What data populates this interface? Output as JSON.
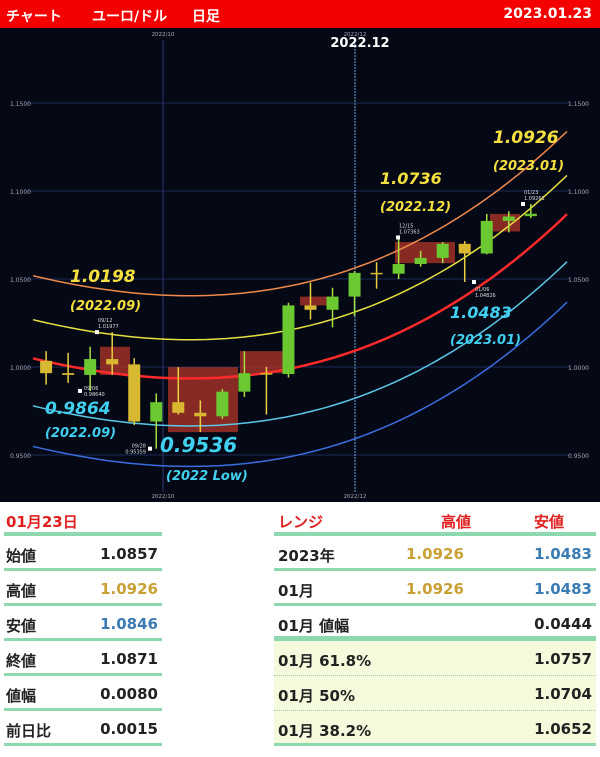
{
  "header": {
    "chart_label": "チャート",
    "pair": "ユーロ/ドル",
    "timeframe": "日足",
    "date": "2023.01.23"
  },
  "colors": {
    "header_bg": "#f40000",
    "chart_bg": "#050815",
    "high": "#c9a034",
    "low": "#3b7bb3",
    "separator": "#8ed8b0"
  },
  "chart_data": {
    "type": "candlestick",
    "x_ticks": [
      "2022/10",
      "2022/12"
    ],
    "highlight_tick": "2022.12",
    "y_ticks": [
      "1.1500",
      "1.1000",
      "1.0500",
      "1.0000",
      "0.9500"
    ],
    "ylim": [
      0.93,
      1.19
    ],
    "grid": true,
    "weekly_ohlc": [
      {
        "week": "2022-08-22",
        "o": 1.0035,
        "h": 1.009,
        "l": 0.99,
        "c": 0.9965
      },
      {
        "week": "2022-08-29",
        "o": 0.9965,
        "h": 1.008,
        "l": 0.991,
        "c": 0.9955
      },
      {
        "week": "2022-09-05",
        "o": 0.9955,
        "h": 1.0115,
        "l": 0.9864,
        "c": 1.0045
      },
      {
        "week": "2022-09-12",
        "o": 1.0045,
        "h": 1.0198,
        "l": 0.9955,
        "c": 1.0015
      },
      {
        "week": "2022-09-19",
        "o": 1.0015,
        "h": 1.005,
        "l": 0.967,
        "c": 0.969
      },
      {
        "week": "2022-09-26",
        "o": 0.969,
        "h": 0.985,
        "l": 0.9536,
        "c": 0.98
      },
      {
        "week": "2022-10-03",
        "o": 0.98,
        "h": 0.9999,
        "l": 0.973,
        "c": 0.974
      },
      {
        "week": "2022-10-10",
        "o": 0.974,
        "h": 0.981,
        "l": 0.963,
        "c": 0.972
      },
      {
        "week": "2022-10-17",
        "o": 0.972,
        "h": 0.9875,
        "l": 0.9705,
        "c": 0.986
      },
      {
        "week": "2022-10-24",
        "o": 0.986,
        "h": 1.009,
        "l": 0.983,
        "c": 0.9965
      },
      {
        "week": "2022-10-31",
        "o": 0.9965,
        "h": 1.0,
        "l": 0.973,
        "c": 0.996
      },
      {
        "week": "2022-11-07",
        "o": 0.996,
        "h": 1.0365,
        "l": 0.994,
        "c": 1.035
      },
      {
        "week": "2022-11-14",
        "o": 1.035,
        "h": 1.048,
        "l": 1.027,
        "c": 1.0325
      },
      {
        "week": "2022-11-21",
        "o": 1.0325,
        "h": 1.045,
        "l": 1.0225,
        "c": 1.04
      },
      {
        "week": "2022-11-28",
        "o": 1.04,
        "h": 1.0545,
        "l": 1.029,
        "c": 1.0535
      },
      {
        "week": "2022-12-05",
        "o": 1.0535,
        "h": 1.0595,
        "l": 1.0445,
        "c": 1.053
      },
      {
        "week": "2022-12-12",
        "o": 1.053,
        "h": 1.0736,
        "l": 1.05,
        "c": 1.0585
      },
      {
        "week": "2022-12-19",
        "o": 1.0585,
        "h": 1.066,
        "l": 1.057,
        "c": 1.062
      },
      {
        "week": "2022-12-26",
        "o": 1.062,
        "h": 1.071,
        "l": 1.059,
        "c": 1.07
      },
      {
        "week": "2023-01-02",
        "o": 1.07,
        "h": 1.0715,
        "l": 1.0483,
        "c": 1.0645
      },
      {
        "week": "2023-01-09",
        "o": 1.0645,
        "h": 1.087,
        "l": 1.064,
        "c": 1.083
      },
      {
        "week": "2023-01-16",
        "o": 1.083,
        "h": 1.0885,
        "l": 1.0765,
        "c": 1.0855
      },
      {
        "week": "2023-01-23",
        "o": 1.0857,
        "h": 1.0926,
        "l": 1.0846,
        "c": 1.0871
      }
    ],
    "annotations": [
      {
        "value": "1.0198",
        "period": "(2022.09)",
        "kind": "high"
      },
      {
        "value": "0.9864",
        "period": "(2022.09)",
        "kind": "low"
      },
      {
        "value": "0.9536",
        "period": "(2022 Low)",
        "kind": "low"
      },
      {
        "value": "1.0736",
        "period": "(2022.12)",
        "kind": "high"
      },
      {
        "value": "1.0926",
        "period": "(2023.01)",
        "kind": "high"
      },
      {
        "value": "1.0483",
        "period": "(2023.01)",
        "kind": "low"
      }
    ],
    "point_labels": [
      {
        "date": "09/06",
        "price": "0.98640"
      },
      {
        "date": "09/12",
        "price": "1.01977"
      },
      {
        "date": "09/28",
        "price": "0.95359"
      },
      {
        "date": "12/15",
        "price": "1.07363"
      },
      {
        "date": "01/06",
        "price": "1.04826"
      },
      {
        "date": "01/23",
        "price": "1.09261"
      }
    ]
  },
  "daily": {
    "title": "01月23日",
    "rows": [
      {
        "label": "始値",
        "value": "1.0857"
      },
      {
        "label": "高値",
        "value": "1.0926"
      },
      {
        "label": "安値",
        "value": "1.0846"
      },
      {
        "label": "終値",
        "value": "1.0871"
      },
      {
        "label": "値幅",
        "value": "0.0080"
      },
      {
        "label": "前日比",
        "value": "0.0015"
      }
    ]
  },
  "range": {
    "title": "レンジ",
    "high_header": "高値",
    "low_header": "安値",
    "rows": [
      {
        "label": "2023年",
        "high": "1.0926",
        "low": "1.0483"
      },
      {
        "label": "01月",
        "high": "1.0926",
        "low": "1.0483"
      },
      {
        "label": "01月 値幅",
        "value": "0.0444"
      },
      {
        "label": "01月  61.8%",
        "value": "1.0757"
      },
      {
        "label": "01月  50%",
        "value": "1.0704"
      },
      {
        "label": "01月  38.2%",
        "value": "1.0652"
      }
    ]
  }
}
